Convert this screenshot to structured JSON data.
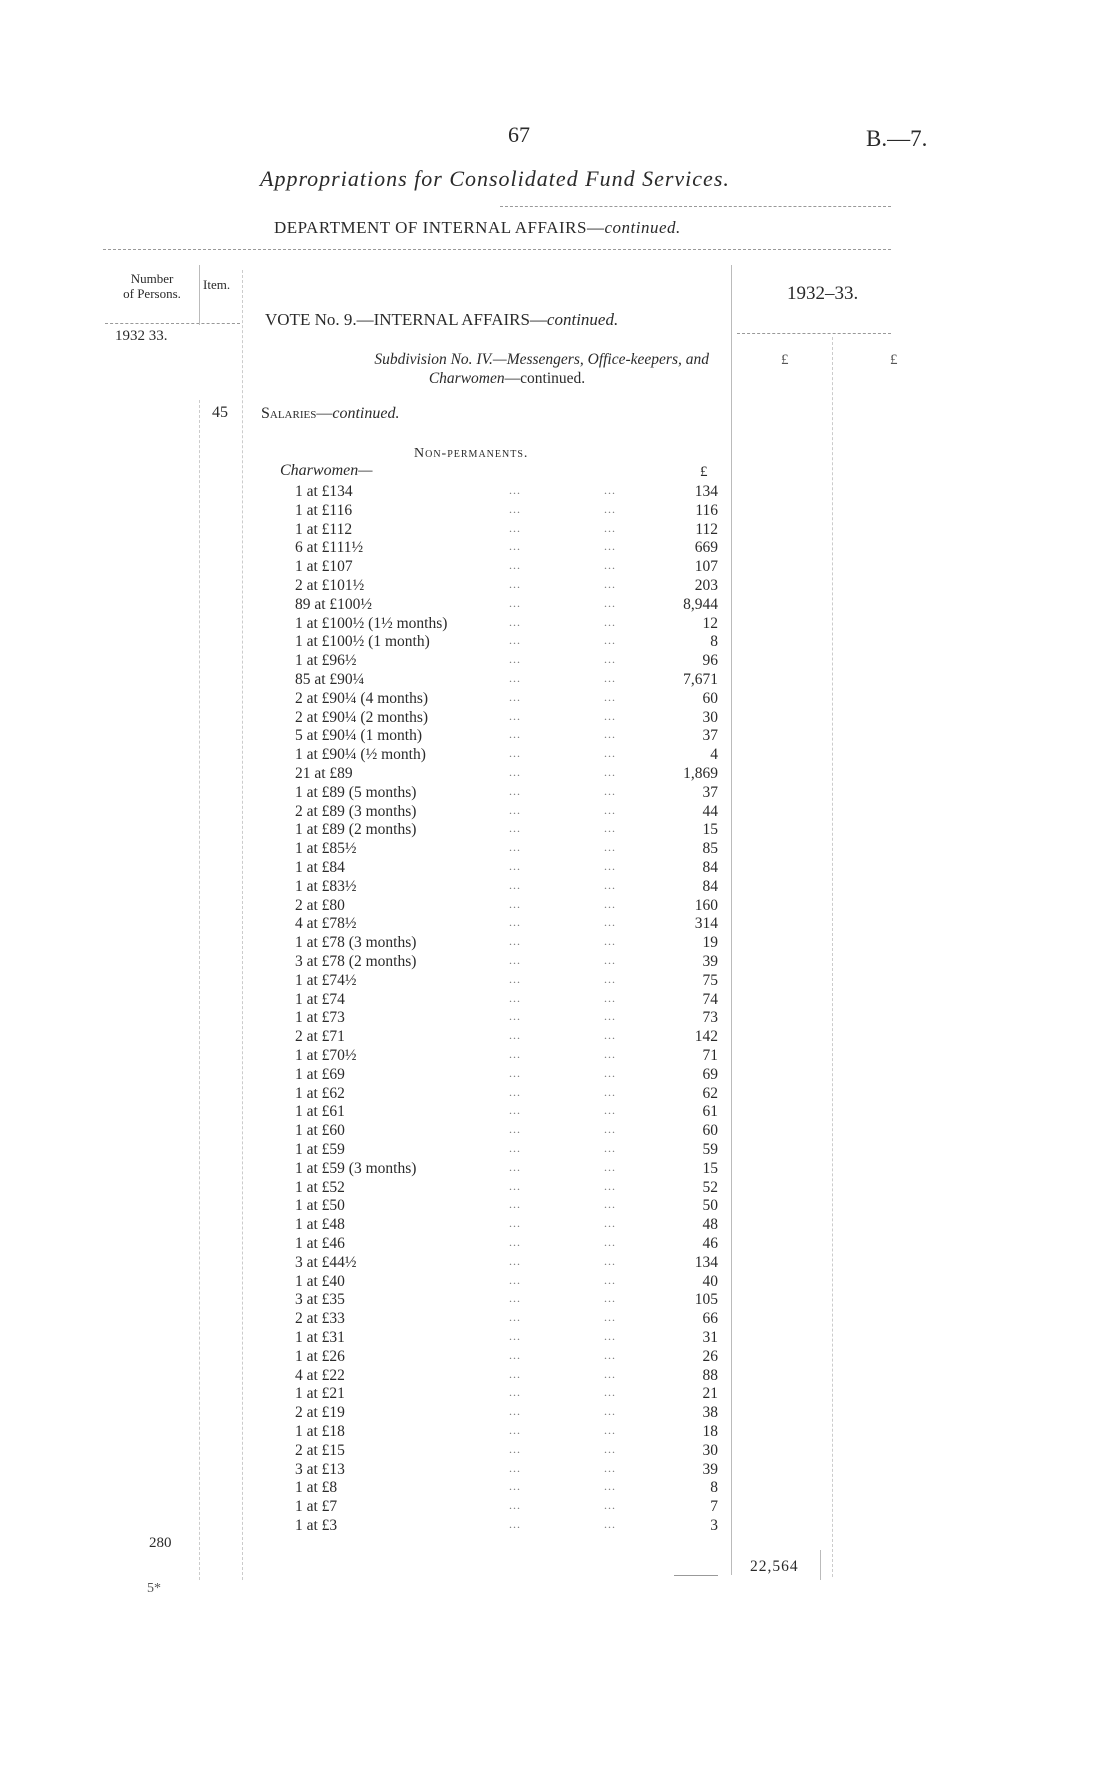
{
  "page_number": "67",
  "doc_ref": "B.—7.",
  "title": "Appropriations for Consolidated Fund Services.",
  "department": {
    "text": "DEPARTMENT OF INTERNAL AFFAIRS—",
    "continued": "continued."
  },
  "header": {
    "number_line1": "Number",
    "number_line2": "of Persons.",
    "item": "Item.",
    "year_left": "1932 33.",
    "year_right": "1932–33.",
    "pound_1": "£",
    "pound_2": "£"
  },
  "vote": {
    "text": "VOTE No. 9.—INTERNAL AFFAIRS—",
    "continued": "continued."
  },
  "subdivision": {
    "line1": "Subdivision No. IV.—Messengers, Office-keepers, and",
    "line2_italic": "Charwomen",
    "line2_rest": "—continued."
  },
  "item_number": "45",
  "salaries": {
    "text": "Salaries—",
    "continued": "continued."
  },
  "section": "Non-permanents.",
  "group": {
    "label": "Charwomen—",
    "pound": "£"
  },
  "dots": "...",
  "rows": [
    {
      "label": "1 at £134",
      "amount": "134"
    },
    {
      "label": "1 at £116",
      "amount": "116"
    },
    {
      "label": "1 at £112",
      "amount": "112"
    },
    {
      "label": "6 at £111½",
      "amount": "669"
    },
    {
      "label": "1 at £107",
      "amount": "107"
    },
    {
      "label": "2 at £101½",
      "amount": "203"
    },
    {
      "label": "89 at £100½",
      "amount": "8,944"
    },
    {
      "label": "1 at £100½ (1½ months)",
      "amount": "12"
    },
    {
      "label": "1 at £100½ (1 month)",
      "amount": "8"
    },
    {
      "label": "1 at £96½",
      "amount": "96"
    },
    {
      "label": "85 at £90¼",
      "amount": "7,671"
    },
    {
      "label": "2 at £90¼ (4 months)",
      "amount": "60"
    },
    {
      "label": "2 at £90¼ (2 months)",
      "amount": "30"
    },
    {
      "label": "5 at £90¼ (1 month)",
      "amount": "37"
    },
    {
      "label": "1 at £90¼ (½ month)",
      "amount": "4"
    },
    {
      "label": "21 at £89",
      "amount": "1,869"
    },
    {
      "label": "1 at £89 (5 months)",
      "amount": "37"
    },
    {
      "label": "2 at £89 (3 months)",
      "amount": "44"
    },
    {
      "label": "1 at £89 (2 months)",
      "amount": "15"
    },
    {
      "label": "1 at £85½",
      "amount": "85"
    },
    {
      "label": "1 at £84",
      "amount": "84"
    },
    {
      "label": "1 at £83½",
      "amount": "84"
    },
    {
      "label": "2 at £80",
      "amount": "160"
    },
    {
      "label": "4 at £78½",
      "amount": "314"
    },
    {
      "label": "1 at £78 (3 months)",
      "amount": "19"
    },
    {
      "label": "3 at £78 (2 months)",
      "amount": "39"
    },
    {
      "label": "1 at £74½",
      "amount": "75"
    },
    {
      "label": "1 at £74",
      "amount": "74"
    },
    {
      "label": "1 at £73",
      "amount": "73"
    },
    {
      "label": "2 at £71",
      "amount": "142"
    },
    {
      "label": "1 at £70½",
      "amount": "71"
    },
    {
      "label": "1 at £69",
      "amount": "69"
    },
    {
      "label": "1 at £62",
      "amount": "62"
    },
    {
      "label": "1 at £61",
      "amount": "61"
    },
    {
      "label": "1 at £60",
      "amount": "60"
    },
    {
      "label": "1 at £59",
      "amount": "59"
    },
    {
      "label": "1 at £59 (3 months)",
      "amount": "15"
    },
    {
      "label": "1 at £52",
      "amount": "52"
    },
    {
      "label": "1 at £50",
      "amount": "50"
    },
    {
      "label": "1 at £48",
      "amount": "48"
    },
    {
      "label": "1 at £46",
      "amount": "46"
    },
    {
      "label": "3 at £44½",
      "amount": "134"
    },
    {
      "label": "1 at £40",
      "amount": "40"
    },
    {
      "label": "3 at £35",
      "amount": "105"
    },
    {
      "label": "2 at £33",
      "amount": "66"
    },
    {
      "label": "1 at £31",
      "amount": "31"
    },
    {
      "label": "1 at £26",
      "amount": "26"
    },
    {
      "label": "4 at £22",
      "amount": "88"
    },
    {
      "label": "1 at £21",
      "amount": "21"
    },
    {
      "label": "2 at £19",
      "amount": "38"
    },
    {
      "label": "1 at £18",
      "amount": "18"
    },
    {
      "label": "2 at £15",
      "amount": "30"
    },
    {
      "label": "3 at £13",
      "amount": "39"
    },
    {
      "label": "1 at £8",
      "amount": "8"
    },
    {
      "label": "1 at £7",
      "amount": "7"
    },
    {
      "label": "1 at £3",
      "amount": "3"
    }
  ],
  "persons_total": "280",
  "grand_total": "22,564",
  "footer_mark": "5*"
}
